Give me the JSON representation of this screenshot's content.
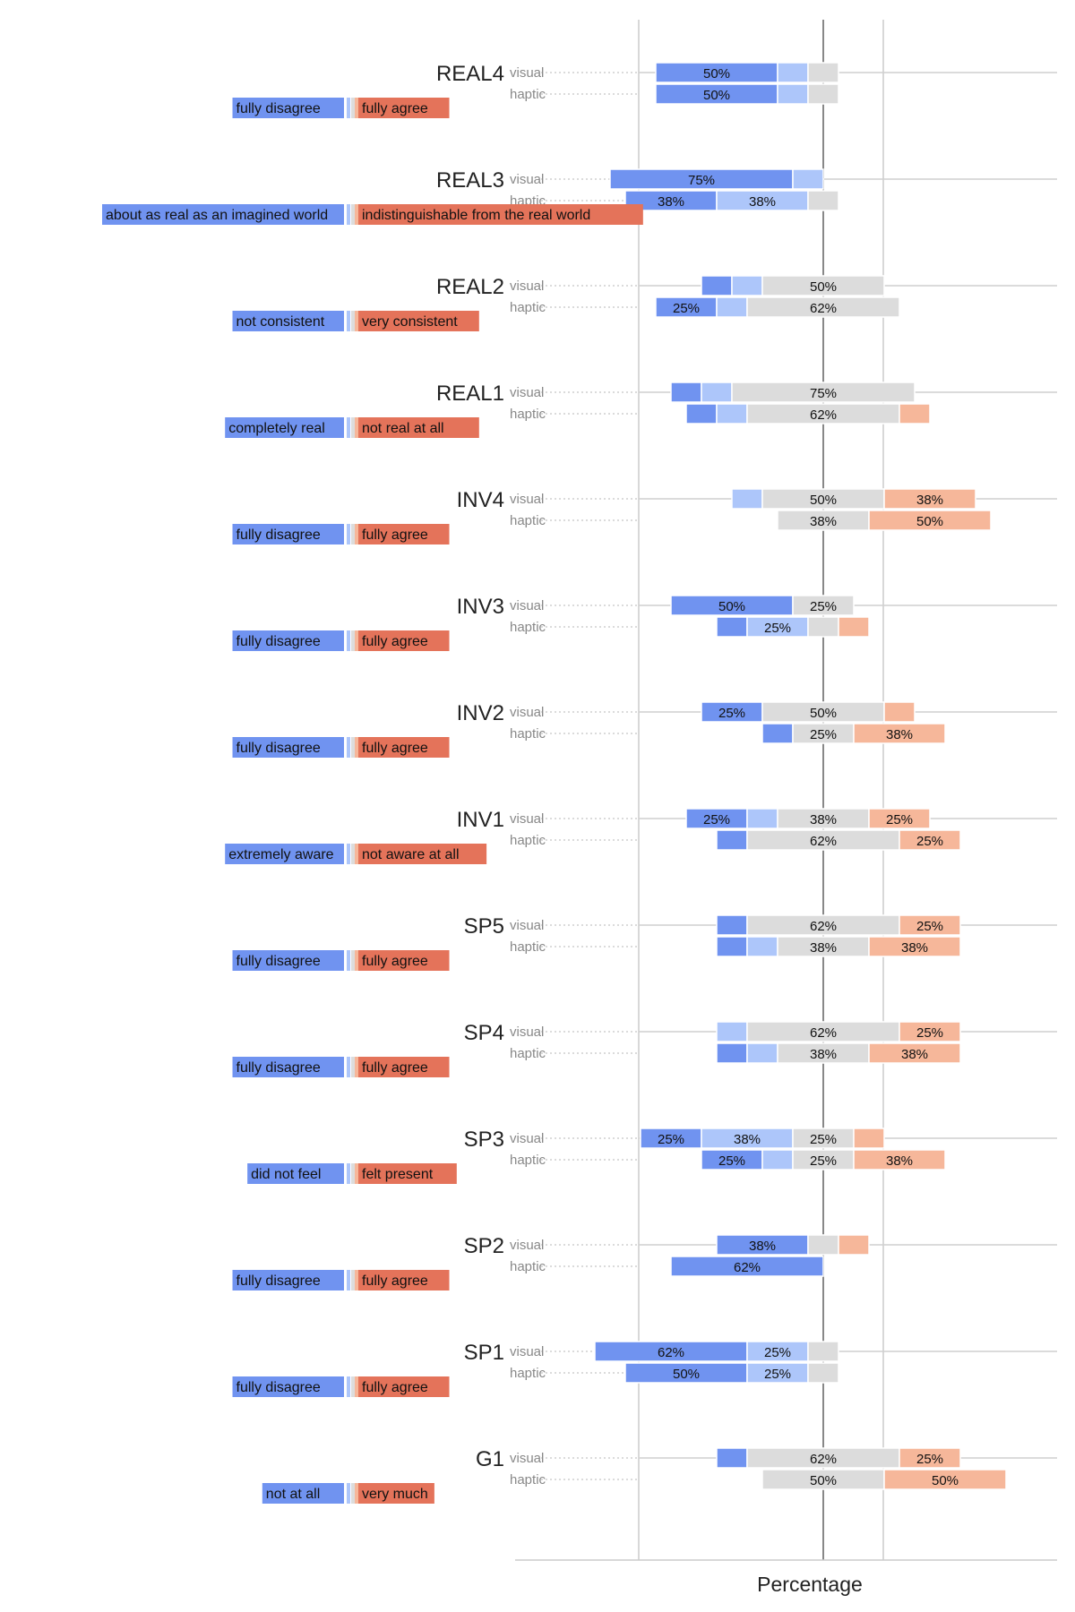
{
  "chart_data": {
    "type": "bar",
    "subtype": "diverging-likert",
    "xlabel": "Percentage",
    "colors": {
      "likert": [
        "#7093f0",
        "#adc6fa",
        "#dcdcdc",
        "#f6b79a",
        "#e4735a"
      ],
      "anchor_low": "#7093f0",
      "anchor_high": "#e4735a",
      "grid": "#cccccc",
      "center_line": "#888888",
      "label_text": "#222222",
      "modality_text": "#888888"
    },
    "legend": "per-item anchor labels at left",
    "items": [
      {
        "id": "REAL4",
        "low_anchor": "fully disagree",
        "high_anchor": "fully agree",
        "rows": [
          {
            "modality": "visual",
            "values": [
              50,
              12.5,
              12.5,
              0,
              0
            ],
            "labels": [
              "50%",
              "",
              "",
              "",
              ""
            ]
          },
          {
            "modality": "haptic",
            "values": [
              50,
              12.5,
              12.5,
              0,
              0
            ],
            "labels": [
              "50%",
              "",
              "",
              "",
              ""
            ]
          }
        ]
      },
      {
        "id": "REAL3",
        "low_anchor": "about as real as an imagined world",
        "high_anchor": "indistinguishable from the real world",
        "rows": [
          {
            "modality": "visual",
            "values": [
              75,
              12.5,
              0,
              0,
              0
            ],
            "labels": [
              "75%",
              "",
              "",
              "",
              ""
            ]
          },
          {
            "modality": "haptic",
            "values": [
              37.5,
              37.5,
              12.5,
              0,
              0
            ],
            "labels": [
              "38%",
              "38%",
              "",
              "",
              ""
            ]
          }
        ]
      },
      {
        "id": "REAL2",
        "low_anchor": "not consistent",
        "high_anchor": "very consistent",
        "rows": [
          {
            "modality": "visual",
            "values": [
              12.5,
              12.5,
              50,
              0,
              0
            ],
            "labels": [
              "",
              "",
              "50%",
              "",
              ""
            ]
          },
          {
            "modality": "haptic",
            "values": [
              25,
              12.5,
              62.5,
              0,
              0
            ],
            "labels": [
              "25%",
              "",
              "62%",
              "",
              ""
            ]
          }
        ]
      },
      {
        "id": "REAL1",
        "low_anchor": "completely real",
        "high_anchor": "not real at all",
        "rows": [
          {
            "modality": "visual",
            "values": [
              12.5,
              12.5,
              75,
              0,
              0
            ],
            "labels": [
              "",
              "",
              "75%",
              "",
              ""
            ]
          },
          {
            "modality": "haptic",
            "values": [
              12.5,
              12.5,
              62.5,
              12.5,
              0
            ],
            "labels": [
              "",
              "",
              "62%",
              "",
              ""
            ]
          }
        ]
      },
      {
        "id": "INV4",
        "low_anchor": "fully disagree",
        "high_anchor": "fully agree",
        "rows": [
          {
            "modality": "visual",
            "values": [
              0,
              12.5,
              50,
              37.5,
              0
            ],
            "labels": [
              "",
              "",
              "50%",
              "38%",
              ""
            ]
          },
          {
            "modality": "haptic",
            "values": [
              0,
              0,
              37.5,
              50,
              0
            ],
            "labels": [
              "",
              "",
              "38%",
              "50%",
              ""
            ]
          }
        ]
      },
      {
        "id": "INV3",
        "low_anchor": "fully disagree",
        "high_anchor": "fully agree",
        "rows": [
          {
            "modality": "visual",
            "values": [
              50,
              0,
              25,
              0,
              0
            ],
            "labels": [
              "50%",
              "",
              "25%",
              "",
              ""
            ]
          },
          {
            "modality": "haptic",
            "values": [
              12.5,
              25,
              12.5,
              12.5,
              0
            ],
            "labels": [
              "",
              "25%",
              "",
              "",
              ""
            ]
          }
        ]
      },
      {
        "id": "INV2",
        "low_anchor": "fully disagree",
        "high_anchor": "fully agree",
        "rows": [
          {
            "modality": "visual",
            "values": [
              25,
              0,
              50,
              12.5,
              0
            ],
            "labels": [
              "25%",
              "",
              "50%",
              "",
              ""
            ]
          },
          {
            "modality": "haptic",
            "values": [
              12.5,
              0,
              25,
              37.5,
              0
            ],
            "labels": [
              "",
              "",
              "25%",
              "38%",
              ""
            ]
          }
        ]
      },
      {
        "id": "INV1",
        "low_anchor": "extremely aware",
        "high_anchor": "not aware at all",
        "rows": [
          {
            "modality": "visual",
            "values": [
              25,
              12.5,
              37.5,
              25,
              0
            ],
            "labels": [
              "25%",
              "",
              "38%",
              "25%",
              ""
            ]
          },
          {
            "modality": "haptic",
            "values": [
              12.5,
              0,
              62.5,
              25,
              0
            ],
            "labels": [
              "",
              "",
              "62%",
              "25%",
              ""
            ]
          }
        ]
      },
      {
        "id": "SP5",
        "low_anchor": "fully disagree",
        "high_anchor": "fully agree",
        "rows": [
          {
            "modality": "visual",
            "values": [
              12.5,
              0,
              62.5,
              25,
              0
            ],
            "labels": [
              "",
              "",
              "62%",
              "25%",
              ""
            ]
          },
          {
            "modality": "haptic",
            "values": [
              12.5,
              12.5,
              37.5,
              37.5,
              0
            ],
            "labels": [
              "",
              "",
              "38%",
              "38%",
              ""
            ]
          }
        ]
      },
      {
        "id": "SP4",
        "low_anchor": "fully disagree",
        "high_anchor": "fully agree",
        "rows": [
          {
            "modality": "visual",
            "values": [
              0,
              12.5,
              62.5,
              25,
              0
            ],
            "labels": [
              "",
              "",
              "62%",
              "25%",
              ""
            ]
          },
          {
            "modality": "haptic",
            "values": [
              12.5,
              12.5,
              37.5,
              37.5,
              0
            ],
            "labels": [
              "",
              "",
              "38%",
              "38%",
              ""
            ]
          }
        ]
      },
      {
        "id": "SP3",
        "low_anchor": "did not feel",
        "high_anchor": "felt present",
        "rows": [
          {
            "modality": "visual",
            "values": [
              25,
              37.5,
              25,
              12.5,
              0
            ],
            "labels": [
              "25%",
              "38%",
              "25%",
              "",
              ""
            ]
          },
          {
            "modality": "haptic",
            "values": [
              25,
              12.5,
              25,
              37.5,
              0
            ],
            "labels": [
              "25%",
              "",
              "25%",
              "38%",
              ""
            ]
          }
        ]
      },
      {
        "id": "SP2",
        "low_anchor": "fully disagree",
        "high_anchor": "fully agree",
        "rows": [
          {
            "modality": "visual",
            "values": [
              37.5,
              0,
              12.5,
              12.5,
              0
            ],
            "labels": [
              "38%",
              "",
              "",
              "",
              ""
            ]
          },
          {
            "modality": "haptic",
            "values": [
              62.5,
              0,
              0,
              0,
              0
            ],
            "labels": [
              "62%",
              "",
              "",
              "",
              ""
            ]
          }
        ]
      },
      {
        "id": "SP1",
        "low_anchor": "fully disagree",
        "high_anchor": "fully agree",
        "rows": [
          {
            "modality": "visual",
            "values": [
              62.5,
              25,
              12.5,
              0,
              0
            ],
            "labels": [
              "62%",
              "25%",
              "",
              "",
              ""
            ]
          },
          {
            "modality": "haptic",
            "values": [
              50,
              25,
              12.5,
              0,
              0
            ],
            "labels": [
              "50%",
              "25%",
              "",
              "",
              ""
            ]
          }
        ]
      },
      {
        "id": "G1",
        "low_anchor": "not at all",
        "high_anchor": "very much",
        "rows": [
          {
            "modality": "visual",
            "values": [
              12.5,
              0,
              62.5,
              25,
              0
            ],
            "labels": [
              "",
              "",
              "62%",
              "25%",
              ""
            ]
          },
          {
            "modality": "haptic",
            "values": [
              0,
              0,
              50,
              50,
              0
            ],
            "labels": [
              "",
              "",
              "50%",
              "50%",
              ""
            ]
          }
        ]
      }
    ]
  }
}
